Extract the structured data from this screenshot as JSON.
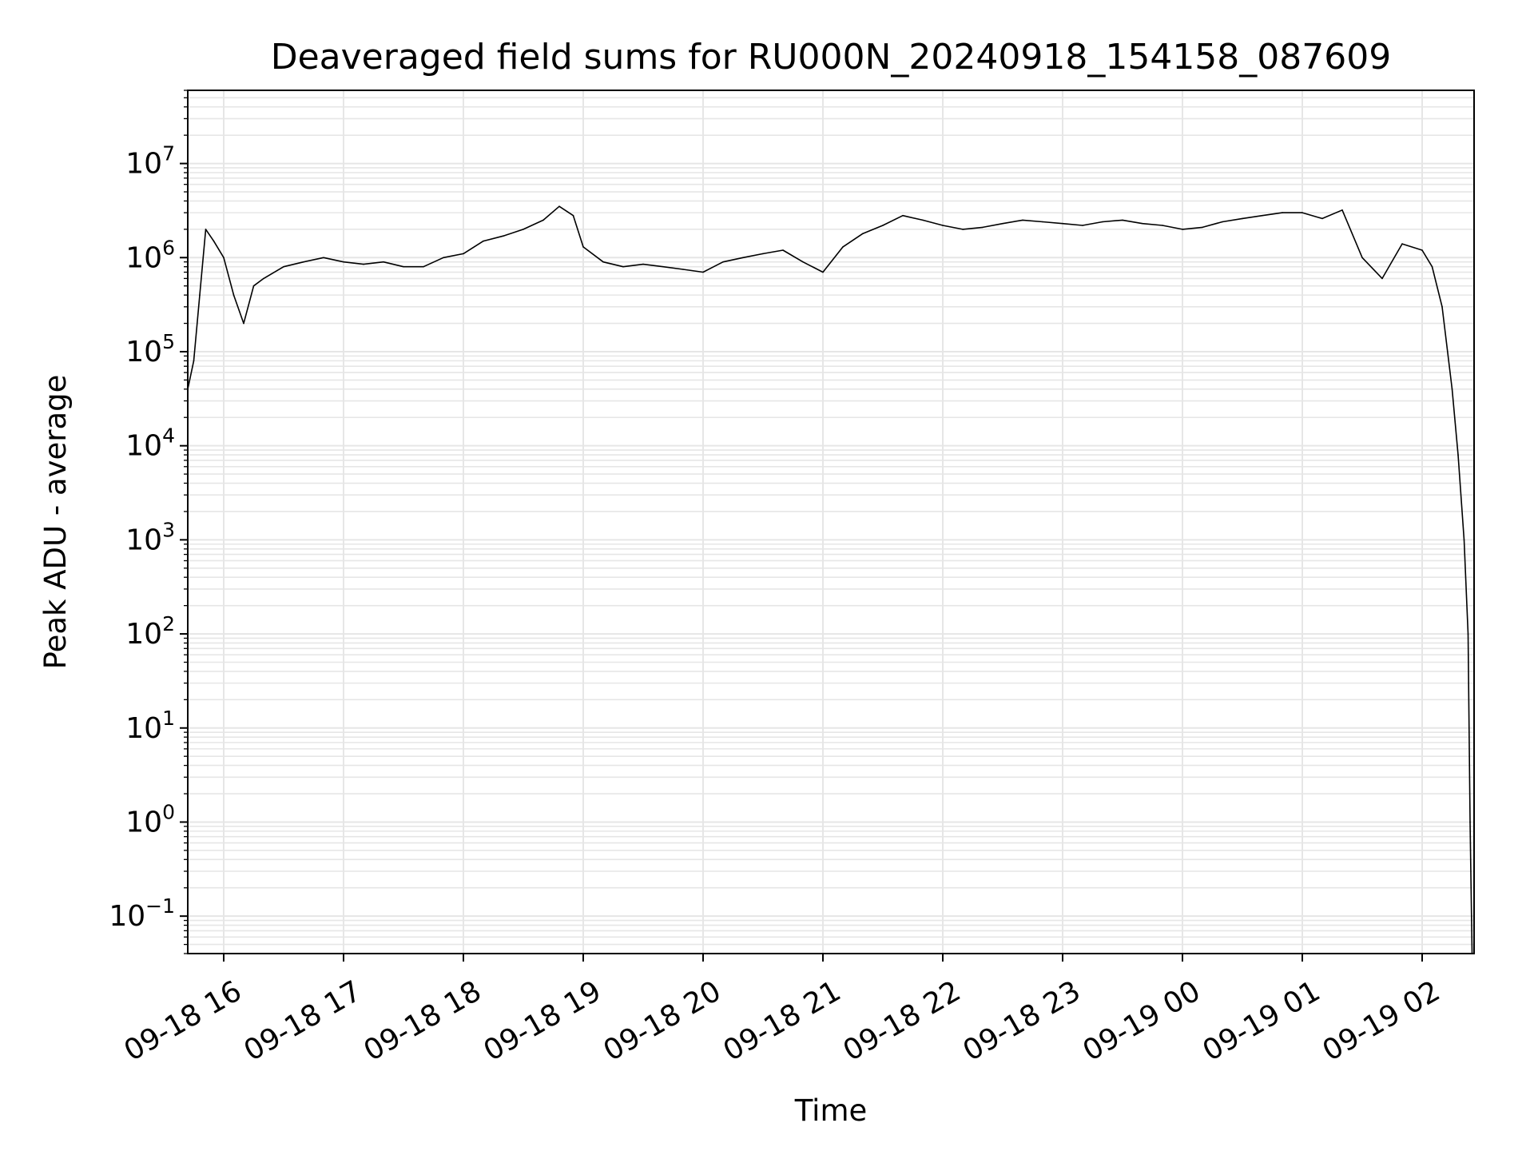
{
  "chart_data": {
    "type": "line",
    "title": "Deaveraged field sums for RU000N_20240918_154158_087609",
    "xlabel": "Time",
    "ylabel": "Peak ADU - average",
    "y_scale": "log",
    "ylim": [
      0.04,
      60000000
    ],
    "xlim": [
      "2024-09-18 15:42",
      "2024-09-19 02:26"
    ],
    "grid": true,
    "line_color": "#000000",
    "grid_color": "#e6e6e6",
    "x_ticks": [
      {
        "label": "09-18 16",
        "value": "2024-09-18 16:00"
      },
      {
        "label": "09-18 17",
        "value": "2024-09-18 17:00"
      },
      {
        "label": "09-18 18",
        "value": "2024-09-18 18:00"
      },
      {
        "label": "09-18 19",
        "value": "2024-09-18 19:00"
      },
      {
        "label": "09-18 20",
        "value": "2024-09-18 20:00"
      },
      {
        "label": "09-18 21",
        "value": "2024-09-18 21:00"
      },
      {
        "label": "09-18 22",
        "value": "2024-09-18 22:00"
      },
      {
        "label": "09-18 23",
        "value": "2024-09-18 23:00"
      },
      {
        "label": "09-19 00",
        "value": "2024-09-19 00:00"
      },
      {
        "label": "09-19 01",
        "value": "2024-09-19 01:00"
      },
      {
        "label": "09-19 02",
        "value": "2024-09-19 02:00"
      }
    ],
    "y_ticks": [
      {
        "base": "10",
        "exp": "−1",
        "value": 0.1
      },
      {
        "base": "10",
        "exp": "0",
        "value": 1
      },
      {
        "base": "10",
        "exp": "1",
        "value": 10
      },
      {
        "base": "10",
        "exp": "2",
        "value": 100
      },
      {
        "base": "10",
        "exp": "3",
        "value": 1000
      },
      {
        "base": "10",
        "exp": "4",
        "value": 10000
      },
      {
        "base": "10",
        "exp": "5",
        "value": 100000
      },
      {
        "base": "10",
        "exp": "6",
        "value": 1000000
      },
      {
        "base": "10",
        "exp": "7",
        "value": 10000000
      }
    ],
    "series": [
      {
        "x": [
          "2024-09-18 15:42",
          "2024-09-18 15:45",
          "2024-09-18 15:48",
          "2024-09-18 15:51",
          "2024-09-18 15:55",
          "2024-09-18 16:00",
          "2024-09-18 16:05",
          "2024-09-18 16:10",
          "2024-09-18 16:15",
          "2024-09-18 16:20",
          "2024-09-18 16:30",
          "2024-09-18 16:40",
          "2024-09-18 16:50",
          "2024-09-18 17:00",
          "2024-09-18 17:10",
          "2024-09-18 17:20",
          "2024-09-18 17:30",
          "2024-09-18 17:40",
          "2024-09-18 17:50",
          "2024-09-18 18:00",
          "2024-09-18 18:10",
          "2024-09-18 18:20",
          "2024-09-18 18:30",
          "2024-09-18 18:40",
          "2024-09-18 18:48",
          "2024-09-18 18:55",
          "2024-09-18 19:00",
          "2024-09-18 19:10",
          "2024-09-18 19:20",
          "2024-09-18 19:30",
          "2024-09-18 19:40",
          "2024-09-18 19:50",
          "2024-09-18 20:00",
          "2024-09-18 20:10",
          "2024-09-18 20:20",
          "2024-09-18 20:30",
          "2024-09-18 20:40",
          "2024-09-18 20:50",
          "2024-09-18 21:00",
          "2024-09-18 21:10",
          "2024-09-18 21:20",
          "2024-09-18 21:30",
          "2024-09-18 21:40",
          "2024-09-18 21:50",
          "2024-09-18 22:00",
          "2024-09-18 22:10",
          "2024-09-18 22:20",
          "2024-09-18 22:30",
          "2024-09-18 22:40",
          "2024-09-18 22:50",
          "2024-09-18 23:00",
          "2024-09-18 23:10",
          "2024-09-18 23:20",
          "2024-09-18 23:30",
          "2024-09-18 23:40",
          "2024-09-18 23:50",
          "2024-09-19 00:00",
          "2024-09-19 00:10",
          "2024-09-19 00:20",
          "2024-09-19 00:30",
          "2024-09-19 00:40",
          "2024-09-19 00:50",
          "2024-09-19 01:00",
          "2024-09-19 01:10",
          "2024-09-19 01:20",
          "2024-09-19 01:30",
          "2024-09-19 01:40",
          "2024-09-19 01:50",
          "2024-09-19 02:00",
          "2024-09-19 02:05",
          "2024-09-19 02:10",
          "2024-09-19 02:15",
          "2024-09-19 02:18",
          "2024-09-19 02:21",
          "2024-09-19 02:23",
          "2024-09-19 02:24",
          "2024-09-19 02:25"
        ],
        "y": [
          40000,
          80000,
          400000,
          2000000,
          1500000,
          1000000,
          400000,
          200000,
          500000,
          600000,
          800000,
          900000,
          1000000,
          900000,
          850000,
          900000,
          800000,
          800000,
          1000000,
          1100000,
          1500000,
          1700000,
          2000000,
          2500000,
          3500000,
          2800000,
          1300000,
          900000,
          800000,
          850000,
          800000,
          750000,
          700000,
          900000,
          1000000,
          1100000,
          1200000,
          900000,
          700000,
          1300000,
          1800000,
          2200000,
          2800000,
          2500000,
          2200000,
          2000000,
          2100000,
          2300000,
          2500000,
          2400000,
          2300000,
          2200000,
          2400000,
          2500000,
          2300000,
          2200000,
          2000000,
          2100000,
          2400000,
          2600000,
          2800000,
          3000000,
          3000000,
          2600000,
          3200000,
          1000000,
          600000,
          1400000,
          1200000,
          800000,
          300000,
          40000,
          8000,
          1000,
          100,
          1,
          0.04
        ]
      }
    ]
  }
}
